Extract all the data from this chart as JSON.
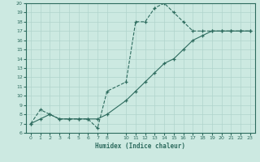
{
  "xlabel": "Humidex (Indice chaleur)",
  "ylabel": "",
  "background_color": "#cce9e1",
  "line_color": "#2d6b5e",
  "grid_color": "#b0d4cc",
  "xlim": [
    -0.5,
    23.5
  ],
  "ylim": [
    6,
    20
  ],
  "xticks": [
    0,
    1,
    2,
    3,
    4,
    5,
    6,
    7,
    8,
    10,
    11,
    12,
    13,
    14,
    15,
    16,
    17,
    18,
    19,
    20,
    21,
    22,
    23
  ],
  "yticks": [
    6,
    7,
    8,
    9,
    10,
    11,
    12,
    13,
    14,
    15,
    16,
    17,
    18,
    19,
    20
  ],
  "line1_x": [
    0,
    1,
    2,
    3,
    4,
    5,
    6,
    7,
    8,
    10,
    11,
    12,
    13,
    14,
    15,
    16,
    17,
    18,
    19,
    20,
    21,
    22,
    23
  ],
  "line1_y": [
    7,
    8.5,
    8,
    7.5,
    7.5,
    7.5,
    7.5,
    6.5,
    10.5,
    11.5,
    18,
    18,
    19.5,
    20,
    19,
    18,
    17,
    17,
    17,
    17,
    17,
    17,
    17
  ],
  "line2_x": [
    0,
    1,
    2,
    3,
    4,
    5,
    6,
    7,
    8,
    10,
    11,
    12,
    13,
    14,
    15,
    16,
    17,
    18,
    19,
    20,
    21,
    22,
    23
  ],
  "line2_y": [
    7,
    7.5,
    8,
    7.5,
    7.5,
    7.5,
    7.5,
    7.5,
    8,
    9.5,
    10.5,
    11.5,
    12.5,
    13.5,
    14,
    15,
    16,
    16.5,
    17,
    17,
    17,
    17,
    17
  ]
}
